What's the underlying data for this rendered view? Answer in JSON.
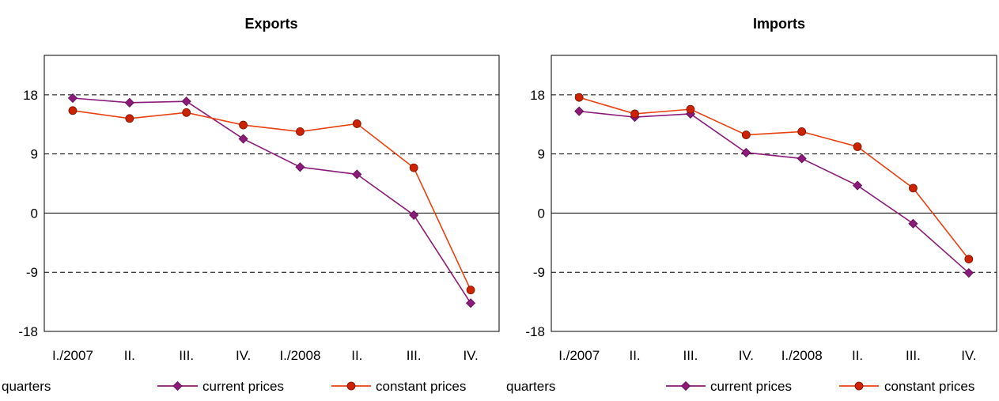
{
  "chart_data": [
    {
      "type": "line",
      "title": "Exports",
      "xlabel": "quarters",
      "ylabel": "",
      "categories": [
        "I./2007",
        "II.",
        "III.",
        "IV.",
        "I./2008",
        "II.",
        "III.",
        "IV."
      ],
      "yticks": [
        18,
        9,
        0,
        -9,
        -18
      ],
      "ylim": [
        -18,
        24
      ],
      "grid": "dashed horizontal at ±9 and 18; solid at 0",
      "legend": "bottom-right",
      "series": [
        {
          "name": "current prices",
          "values": [
            17.5,
            16.8,
            17.0,
            11.3,
            7.0,
            5.9,
            -0.3,
            -13.7
          ],
          "color": "#8B1A7A",
          "marker": "diamond"
        },
        {
          "name": "constant prices",
          "values": [
            15.6,
            14.4,
            15.3,
            13.4,
            12.4,
            13.6,
            6.9,
            -11.7
          ],
          "color": "#E8410F",
          "marker": "circle"
        }
      ]
    },
    {
      "type": "line",
      "title": "Imports",
      "xlabel": "quarters",
      "ylabel": "",
      "categories": [
        "I./2007",
        "II.",
        "III.",
        "IV.",
        "I./2008",
        "II.",
        "III.",
        "IV."
      ],
      "yticks": [
        18,
        9,
        0,
        -9,
        -18
      ],
      "ylim": [
        -18,
        24
      ],
      "grid": "dashed horizontal at ±9 and 18; solid at 0",
      "legend": "bottom-right",
      "series": [
        {
          "name": "current prices",
          "values": [
            15.5,
            14.6,
            15.1,
            9.2,
            8.3,
            4.2,
            -1.6,
            -9.1
          ],
          "color": "#8B1A7A",
          "marker": "diamond"
        },
        {
          "name": "constant prices",
          "values": [
            17.6,
            15.1,
            15.8,
            11.9,
            12.4,
            10.1,
            3.8,
            -7.0
          ],
          "color": "#E8410F",
          "marker": "circle"
        }
      ]
    }
  ]
}
